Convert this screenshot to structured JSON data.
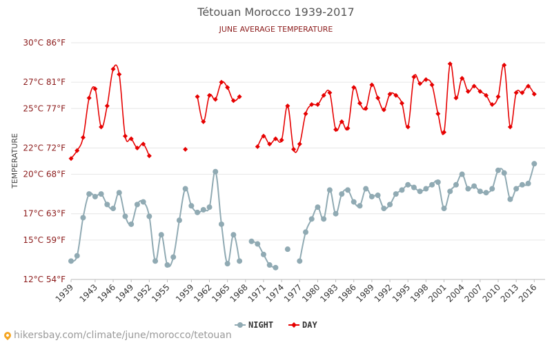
{
  "chart_data": {
    "type": "line",
    "title": "Tétouan Morocco 1939-2017",
    "subtitle": "JUNE AVERAGE TEMPERATURE",
    "ylabel": "TEMPERATURE",
    "ylim": [
      12,
      30
    ],
    "yticks": [
      {
        "value": 12,
        "label": "12°C 54°F"
      },
      {
        "value": 15,
        "label": "15°C 59°F"
      },
      {
        "value": 17,
        "label": "17°C 63°F"
      },
      {
        "value": 20,
        "label": "20°C 68°F"
      },
      {
        "value": 22,
        "label": "22°C 72°F"
      },
      {
        "value": 25,
        "label": "25°C 77°F"
      },
      {
        "value": 27,
        "label": "27°C 81°F"
      },
      {
        "value": 30,
        "label": "30°C 86°F"
      }
    ],
    "xlim": [
      1939,
      2017
    ],
    "xticks": [
      1939,
      1943,
      1946,
      1949,
      1952,
      1955,
      1959,
      1962,
      1965,
      1968,
      1971,
      1974,
      1977,
      1980,
      1983,
      1986,
      1989,
      1992,
      1995,
      1998,
      2001,
      2004,
      2007,
      2010,
      2013,
      2016
    ],
    "grid": true,
    "legend_position": "bottom-center",
    "x": [
      1939,
      1940,
      1941,
      1942,
      1943,
      1944,
      1945,
      1946,
      1947,
      1948,
      1949,
      1950,
      1951,
      1952,
      1953,
      1954,
      1955,
      1956,
      1957,
      1958,
      1959,
      1960,
      1961,
      1962,
      1963,
      1964,
      1965,
      1966,
      1967,
      1968,
      1969,
      1970,
      1971,
      1972,
      1973,
      1974,
      1975,
      1976,
      1977,
      1978,
      1979,
      1980,
      1981,
      1982,
      1983,
      1984,
      1985,
      1986,
      1987,
      1988,
      1989,
      1990,
      1991,
      1992,
      1993,
      1994,
      1995,
      1996,
      1997,
      1998,
      1999,
      2000,
      2001,
      2002,
      2003,
      2004,
      2005,
      2006,
      2007,
      2008,
      2009,
      2010,
      2011,
      2012,
      2013,
      2014,
      2015,
      2016,
      2017
    ],
    "series": [
      {
        "name": "NIGHT",
        "color": "#90aab3",
        "values": [
          13.4,
          13.8,
          16.7,
          18.5,
          18.3,
          18.5,
          17.7,
          17.4,
          18.6,
          16.8,
          16.2,
          17.7,
          17.9,
          16.8,
          13.4,
          15.4,
          13.1,
          13.7,
          16.5,
          18.9,
          17.6,
          17.1,
          17.3,
          17.5,
          20.2,
          16.2,
          13.2,
          15.4,
          13.4,
          null,
          14.9,
          14.7,
          13.9,
          13.1,
          12.9,
          null,
          14.3,
          null,
          13.4,
          15.6,
          16.6,
          17.5,
          16.6,
          18.8,
          17.0,
          18.5,
          18.8,
          17.9,
          17.6,
          18.9,
          18.3,
          18.4,
          17.4,
          17.7,
          18.5,
          18.8,
          19.2,
          19.0,
          18.7,
          18.9,
          19.2,
          19.4,
          17.4,
          18.7,
          19.2,
          20.0,
          18.9,
          19.1,
          18.7,
          18.6,
          18.9,
          20.3,
          20.1,
          18.1,
          18.9,
          19.2,
          19.3,
          20.8,
          null
        ]
      },
      {
        "name": "DAY",
        "color": "#e60000",
        "values": [
          21.2,
          21.8,
          22.8,
          25.8,
          26.5,
          23.6,
          25.2,
          28.0,
          27.6,
          22.9,
          22.7,
          22.0,
          22.3,
          21.4,
          null,
          null,
          null,
          null,
          null,
          21.9,
          null,
          25.9,
          24.0,
          26.0,
          25.7,
          27.0,
          26.6,
          25.6,
          25.9,
          null,
          null,
          22.1,
          22.9,
          22.3,
          22.7,
          22.6,
          25.2,
          21.9,
          22.3,
          24.6,
          25.3,
          25.3,
          26.0,
          26.2,
          23.4,
          24.0,
          23.5,
          26.6,
          25.4,
          25.0,
          26.8,
          25.8,
          24.9,
          26.1,
          26.0,
          25.4,
          23.6,
          27.4,
          26.9,
          27.2,
          26.8,
          24.6,
          23.2,
          28.4,
          25.8,
          27.3,
          26.3,
          26.7,
          26.3,
          26.0,
          25.3,
          25.9,
          28.3,
          23.6,
          26.2,
          26.2,
          26.7,
          26.1,
          null
        ]
      }
    ]
  },
  "footer": {
    "url": "hikersbay.com/climate/june/morocco/tetouan",
    "pin_icon": "map-pin-icon"
  }
}
